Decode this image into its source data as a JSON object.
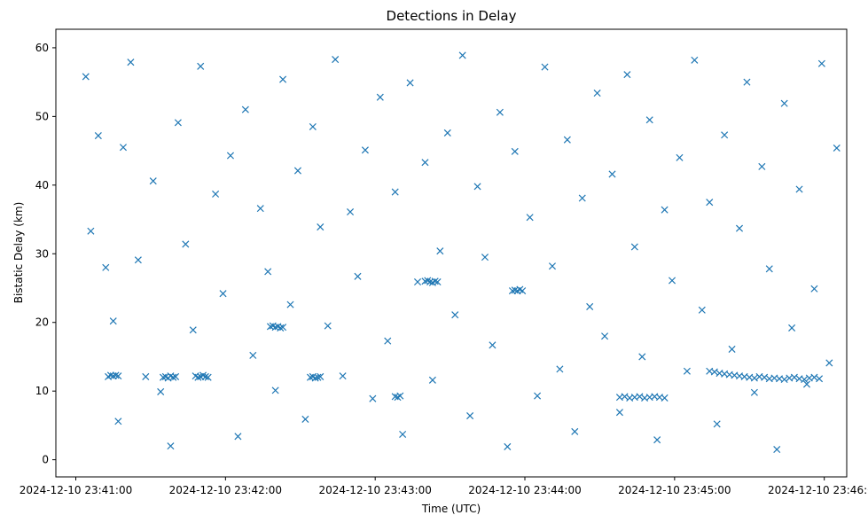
{
  "chart_data": {
    "type": "scatter",
    "title": "Detections in Delay",
    "xlabel": "Time (UTC)",
    "ylabel": "Bistatic Delay (km)",
    "marker": "x",
    "color": "#1f77b4",
    "grid": false,
    "x_range": [
      "2024-12-10 23:40:52",
      "2024-12-10 23:46:09"
    ],
    "ylim": [
      -2.5,
      62.7
    ],
    "x_ticks": [
      "2024-12-10 23:41:00",
      "2024-12-10 23:42:00",
      "2024-12-10 23:43:00",
      "2024-12-10 23:44:00",
      "2024-12-10 23:45:00",
      "2024-12-10 23:46:00"
    ],
    "y_ticks": [
      "0",
      "10",
      "20",
      "30",
      "40",
      "50",
      "60"
    ],
    "series": [
      {
        "x": [
          "2024-12-10 23:41:04",
          "2024-12-10 23:41:06",
          "2024-12-10 23:41:09",
          "2024-12-10 23:41:12",
          "2024-12-10 23:41:15",
          "2024-12-10 23:41:17",
          "2024-12-10 23:41:19",
          "2024-12-10 23:41:22",
          "2024-12-10 23:41:25",
          "2024-12-10 23:41:28",
          "2024-12-10 23:41:31",
          "2024-12-10 23:41:34",
          "2024-12-10 23:41:38",
          "2024-12-10 23:41:41",
          "2024-12-10 23:41:44",
          "2024-12-10 23:41:47",
          "2024-12-10 23:41:50",
          "2024-12-10 23:41:53",
          "2024-12-10 23:41:56",
          "2024-12-10 23:41:59",
          "2024-12-10 23:42:02",
          "2024-12-10 23:42:05",
          "2024-12-10 23:42:08",
          "2024-12-10 23:42:11",
          "2024-12-10 23:42:14",
          "2024-12-10 23:42:17",
          "2024-12-10 23:42:20",
          "2024-12-10 23:42:23",
          "2024-12-10 23:42:26",
          "2024-12-10 23:42:29",
          "2024-12-10 23:42:32",
          "2024-12-10 23:42:35",
          "2024-12-10 23:42:38",
          "2024-12-10 23:42:41",
          "2024-12-10 23:42:44",
          "2024-12-10 23:42:47",
          "2024-12-10 23:42:50",
          "2024-12-10 23:42:53",
          "2024-12-10 23:42:56",
          "2024-12-10 23:42:59",
          "2024-12-10 23:43:02",
          "2024-12-10 23:43:05",
          "2024-12-10 23:43:08",
          "2024-12-10 23:43:11",
          "2024-12-10 23:43:14",
          "2024-12-10 23:43:17",
          "2024-12-10 23:43:20",
          "2024-12-10 23:43:23",
          "2024-12-10 23:43:26",
          "2024-12-10 23:43:29",
          "2024-12-10 23:43:32",
          "2024-12-10 23:43:35",
          "2024-12-10 23:43:38",
          "2024-12-10 23:43:41",
          "2024-12-10 23:43:44",
          "2024-12-10 23:43:47",
          "2024-12-10 23:43:50",
          "2024-12-10 23:43:53",
          "2024-12-10 23:43:56",
          "2024-12-10 23:43:59",
          "2024-12-10 23:44:02",
          "2024-12-10 23:44:05",
          "2024-12-10 23:44:08",
          "2024-12-10 23:44:11",
          "2024-12-10 23:44:14",
          "2024-12-10 23:44:17",
          "2024-12-10 23:44:20",
          "2024-12-10 23:44:23",
          "2024-12-10 23:44:26",
          "2024-12-10 23:44:29",
          "2024-12-10 23:44:32",
          "2024-12-10 23:44:35",
          "2024-12-10 23:44:38",
          "2024-12-10 23:44:41",
          "2024-12-10 23:44:44",
          "2024-12-10 23:44:47",
          "2024-12-10 23:44:50",
          "2024-12-10 23:44:53",
          "2024-12-10 23:44:56",
          "2024-12-10 23:44:59",
          "2024-12-10 23:45:02",
          "2024-12-10 23:45:05",
          "2024-12-10 23:45:08",
          "2024-12-10 23:45:11",
          "2024-12-10 23:45:14",
          "2024-12-10 23:45:17",
          "2024-12-10 23:45:20",
          "2024-12-10 23:45:23",
          "2024-12-10 23:45:26",
          "2024-12-10 23:45:29",
          "2024-12-10 23:45:32",
          "2024-12-10 23:45:35",
          "2024-12-10 23:45:38",
          "2024-12-10 23:45:41",
          "2024-12-10 23:45:44",
          "2024-12-10 23:45:47",
          "2024-12-10 23:45:50",
          "2024-12-10 23:45:53",
          "2024-12-10 23:45:56",
          "2024-12-10 23:45:59",
          "2024-12-10 23:46:02",
          "2024-12-10 23:46:05",
          "2024-12-10 23:41:13",
          "2024-12-10 23:41:14",
          "2024-12-10 23:41:15",
          "2024-12-10 23:41:16",
          "2024-12-10 23:41:17",
          "2024-12-10 23:41:35",
          "2024-12-10 23:41:36",
          "2024-12-10 23:41:37",
          "2024-12-10 23:41:38",
          "2024-12-10 23:41:39",
          "2024-12-10 23:41:40",
          "2024-12-10 23:41:48",
          "2024-12-10 23:41:49",
          "2024-12-10 23:41:50",
          "2024-12-10 23:41:51",
          "2024-12-10 23:41:52",
          "2024-12-10 23:42:18",
          "2024-12-10 23:42:19",
          "2024-12-10 23:42:20",
          "2024-12-10 23:42:21",
          "2024-12-10 23:42:22",
          "2024-12-10 23:42:23",
          "2024-12-10 23:42:34",
          "2024-12-10 23:42:35",
          "2024-12-10 23:42:36",
          "2024-12-10 23:42:37",
          "2024-12-10 23:42:38",
          "2024-12-10 23:43:08",
          "2024-12-10 23:43:09",
          "2024-12-10 23:43:10",
          "2024-12-10 23:43:20",
          "2024-12-10 23:43:21",
          "2024-12-10 23:43:22",
          "2024-12-10 23:43:23",
          "2024-12-10 23:43:24",
          "2024-12-10 23:43:25",
          "2024-12-10 23:43:55",
          "2024-12-10 23:43:56",
          "2024-12-10 23:43:57",
          "2024-12-10 23:43:58",
          "2024-12-10 23:44:38",
          "2024-12-10 23:44:40",
          "2024-12-10 23:44:42",
          "2024-12-10 23:44:44",
          "2024-12-10 23:44:46",
          "2024-12-10 23:44:48",
          "2024-12-10 23:44:50",
          "2024-12-10 23:44:52",
          "2024-12-10 23:44:54",
          "2024-12-10 23:44:56",
          "2024-12-10 23:45:14",
          "2024-12-10 23:45:16",
          "2024-12-10 23:45:18",
          "2024-12-10 23:45:20",
          "2024-12-10 23:45:22",
          "2024-12-10 23:45:24",
          "2024-12-10 23:45:26",
          "2024-12-10 23:45:28",
          "2024-12-10 23:45:30",
          "2024-12-10 23:45:32",
          "2024-12-10 23:45:34",
          "2024-12-10 23:45:36",
          "2024-12-10 23:45:38",
          "2024-12-10 23:45:40",
          "2024-12-10 23:45:42",
          "2024-12-10 23:45:44",
          "2024-12-10 23:45:46",
          "2024-12-10 23:45:48",
          "2024-12-10 23:45:50",
          "2024-12-10 23:45:52",
          "2024-12-10 23:45:54",
          "2024-12-10 23:45:56",
          "2024-12-10 23:45:58"
        ],
        "y": [
          55.8,
          33.3,
          47.2,
          28.0,
          20.2,
          5.6,
          45.5,
          57.9,
          29.1,
          12.1,
          40.6,
          9.9,
          2.0,
          49.1,
          31.4,
          18.9,
          57.3,
          12.0,
          38.7,
          24.2,
          44.3,
          3.4,
          51.0,
          15.2,
          36.6,
          27.4,
          10.1,
          55.4,
          22.6,
          42.1,
          5.9,
          48.5,
          33.9,
          19.5,
          58.3,
          12.2,
          36.1,
          26.7,
          45.1,
          8.9,
          52.8,
          17.3,
          39.0,
          3.7,
          54.9,
          25.9,
          43.3,
          11.6,
          30.4,
          47.6,
          21.1,
          58.9,
          6.4,
          39.8,
          29.5,
          16.7,
          50.6,
          1.9,
          44.9,
          24.6,
          35.3,
          9.3,
          57.2,
          28.2,
          13.2,
          46.6,
          4.1,
          38.1,
          22.3,
          53.4,
          18.0,
          41.6,
          6.9,
          56.1,
          31.0,
          15.0,
          49.5,
          2.9,
          36.4,
          26.1,
          44.0,
          12.9,
          58.2,
          21.8,
          37.5,
          5.2,
          47.3,
          16.1,
          33.7,
          55.0,
          9.8,
          42.7,
          27.8,
          1.5,
          51.9,
          19.2,
          39.4,
          11.0,
          24.9,
          57.7,
          14.1,
          45.4,
          12.1,
          12.3,
          12.2,
          12.3,
          12.2,
          12.0,
          12.1,
          11.9,
          12.2,
          12.0,
          12.1,
          12.2,
          12.0,
          12.1,
          12.3,
          12.1,
          19.4,
          19.5,
          19.3,
          19.4,
          19.2,
          19.3,
          12.0,
          12.1,
          11.9,
          12.0,
          12.1,
          9.2,
          9.1,
          9.3,
          26.0,
          26.1,
          25.9,
          25.8,
          26.0,
          25.9,
          24.6,
          24.7,
          24.6,
          24.8,
          9.1,
          9.2,
          9.0,
          9.1,
          9.2,
          9.0,
          9.1,
          9.2,
          9.1,
          9.0,
          12.9,
          12.8,
          12.6,
          12.5,
          12.4,
          12.3,
          12.2,
          12.1,
          12.0,
          11.9,
          12.1,
          12.0,
          11.8,
          11.9,
          11.8,
          11.7,
          11.9,
          12.0,
          11.8,
          11.7,
          11.9,
          12.0,
          11.8
        ]
      }
    ]
  }
}
